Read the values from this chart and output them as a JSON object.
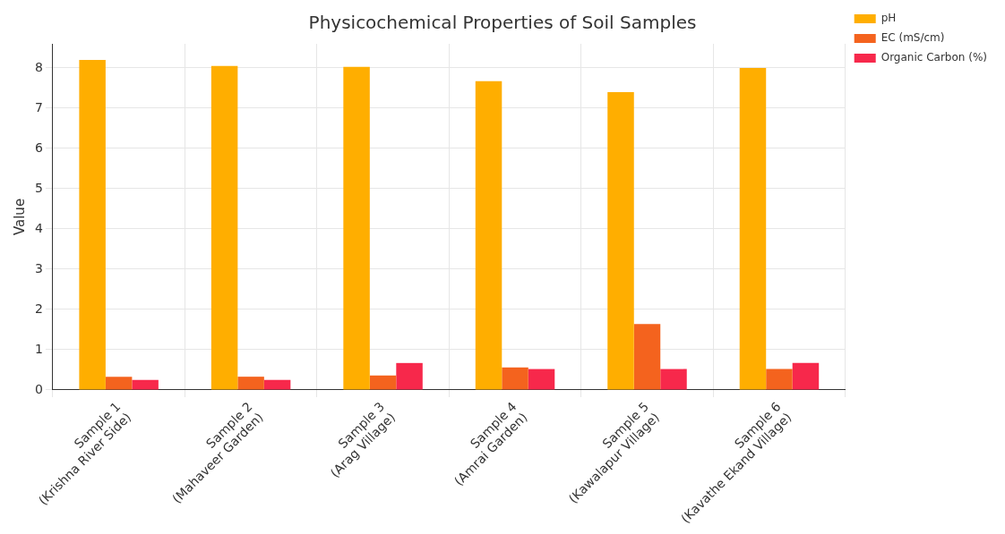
{
  "chart_data": {
    "type": "bar",
    "title": "Physicochemical Properties of Soil Samples",
    "ylabel": "Value",
    "categories": [
      "Sample 1\n(Krishna River Side)",
      "Sample 2\n(Mahaveer Garden)",
      "Sample 3\n(Arag Village)",
      "Sample 4\n(Amrai Garden)",
      "Sample 5\n(Kawalapur Village)",
      "Sample 6\n(Kavathe Ekand Village)"
    ],
    "series": [
      {
        "name": "pH",
        "color": "#ffae00",
        "values": [
          8.2,
          8.05,
          8.03,
          7.67,
          7.4,
          8.0
        ]
      },
      {
        "name": "EC (mS/cm)",
        "color": "#f4631e",
        "values": [
          0.33,
          0.33,
          0.36,
          0.56,
          1.64,
          0.52
        ]
      },
      {
        "name": "Organic Carbon (%)",
        "color": "#f7284b",
        "values": [
          0.25,
          0.25,
          0.67,
          0.52,
          0.52,
          0.67
        ]
      }
    ],
    "ylim": [
      0,
      8.6
    ],
    "yticks": [
      0,
      1,
      2,
      3,
      4,
      5,
      6,
      7,
      8
    ],
    "grid": true,
    "legend": "top right"
  }
}
